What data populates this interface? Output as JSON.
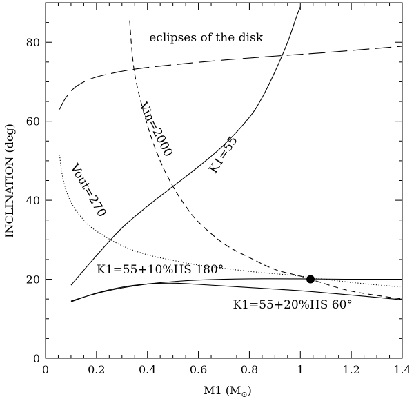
{
  "chart_data": {
    "type": "line",
    "title": "",
    "xlabel": "M1 (M",
    "xlabel_sub": "⊙",
    "xlabel_end": ")",
    "ylabel": "INCLINATION (deg)",
    "xlim": [
      0,
      1.4
    ],
    "ylim": [
      0,
      90
    ],
    "grid": false,
    "x_ticks": [
      {
        "value": 0,
        "label": "0"
      },
      {
        "value": 0.2,
        "label": "0.2"
      },
      {
        "value": 0.4,
        "label": "0.4"
      },
      {
        "value": 0.6,
        "label": "0.6"
      },
      {
        "value": 0.8,
        "label": "0.8"
      },
      {
        "value": 1.0,
        "label": "1"
      },
      {
        "value": 1.2,
        "label": "1.2"
      },
      {
        "value": 1.4,
        "label": "1.4"
      }
    ],
    "y_ticks": [
      {
        "value": 0,
        "label": "0"
      },
      {
        "value": 20,
        "label": "20"
      },
      {
        "value": 40,
        "label": "40"
      },
      {
        "value": 60,
        "label": "60"
      },
      {
        "value": 80,
        "label": "80"
      }
    ],
    "series": [
      {
        "id": "eclipses",
        "style": "longdash",
        "color": "#000000",
        "points": [
          [
            0.055,
            63
          ],
          [
            0.08,
            66
          ],
          [
            0.12,
            68.8
          ],
          [
            0.18,
            70.8
          ],
          [
            0.25,
            72
          ],
          [
            0.35,
            73.2
          ],
          [
            0.5,
            74.3
          ],
          [
            0.7,
            75.5
          ],
          [
            0.9,
            76.5
          ],
          [
            1.1,
            77.4
          ],
          [
            1.4,
            79
          ]
        ]
      },
      {
        "id": "k1-55",
        "style": "solid",
        "color": "#000000",
        "points": [
          [
            0.1,
            18.5
          ],
          [
            0.2,
            26
          ],
          [
            0.3,
            33
          ],
          [
            0.4,
            38.5
          ],
          [
            0.5,
            43.5
          ],
          [
            0.6,
            48.5
          ],
          [
            0.7,
            54
          ],
          [
            0.8,
            61
          ],
          [
            0.85,
            66
          ],
          [
            0.9,
            72.5
          ],
          [
            0.95,
            80
          ],
          [
            0.985,
            86.5
          ],
          [
            1.0,
            89
          ]
        ]
      },
      {
        "id": "vin-2000",
        "style": "dash",
        "color": "#000000",
        "points": [
          [
            0.33,
            85.5
          ],
          [
            0.35,
            72
          ],
          [
            0.4,
            59
          ],
          [
            0.45,
            50
          ],
          [
            0.5,
            43.5
          ],
          [
            0.55,
            38.5
          ],
          [
            0.6,
            34.5
          ],
          [
            0.7,
            29
          ],
          [
            0.8,
            25.5
          ],
          [
            0.9,
            22.5
          ],
          [
            1.0,
            20.8
          ],
          [
            1.04,
            20
          ],
          [
            1.2,
            17
          ],
          [
            1.4,
            15
          ]
        ]
      },
      {
        "id": "vout-270",
        "style": "dot",
        "color": "#000000",
        "points": [
          [
            0.055,
            51.5
          ],
          [
            0.07,
            45
          ],
          [
            0.1,
            39.5
          ],
          [
            0.15,
            35
          ],
          [
            0.2,
            32.2
          ],
          [
            0.3,
            28.5
          ],
          [
            0.4,
            26.2
          ],
          [
            0.5,
            24.8
          ],
          [
            0.6,
            23.6
          ],
          [
            0.8,
            22
          ],
          [
            1.0,
            20.8
          ],
          [
            1.2,
            19.2
          ],
          [
            1.4,
            18
          ]
        ]
      },
      {
        "id": "k1-10hs-180",
        "style": "solid",
        "color": "#000000",
        "points": [
          [
            0.1,
            14.5
          ],
          [
            0.2,
            16.4
          ],
          [
            0.3,
            17.8
          ],
          [
            0.4,
            18.8
          ],
          [
            0.5,
            19.4
          ],
          [
            0.6,
            19.8
          ],
          [
            0.8,
            20.1
          ],
          [
            1.0,
            20.1
          ],
          [
            1.2,
            20
          ],
          [
            1.4,
            20
          ]
        ]
      },
      {
        "id": "k1-20hs-60",
        "style": "solid",
        "color": "#000000",
        "points": [
          [
            0.1,
            14.3
          ],
          [
            0.2,
            16.5
          ],
          [
            0.3,
            18
          ],
          [
            0.4,
            18.8
          ],
          [
            0.5,
            19
          ],
          [
            0.6,
            18.7
          ],
          [
            0.8,
            17.9
          ],
          [
            1.0,
            17.1
          ],
          [
            1.2,
            16
          ],
          [
            1.4,
            14.8
          ]
        ]
      }
    ],
    "marker": {
      "x": 1.04,
      "y": 20
    },
    "annotations": [
      {
        "id": "eclipses-label",
        "text": "eclipses of the disk",
        "x": 0.63,
        "y": 80.2,
        "rotate": 0
      },
      {
        "id": "vin-label",
        "text": "Vin=2000",
        "x": 0.42,
        "y": 57.5,
        "rotate": 63
      },
      {
        "id": "k1-label",
        "text": "K1=55",
        "x": 0.71,
        "y": 51,
        "rotate": -57
      },
      {
        "id": "vout-label",
        "text": "Vout=270",
        "x": 0.155,
        "y": 42,
        "rotate": 60
      },
      {
        "id": "k1-10hs-label",
        "text": "K1=55+10%HS 180°",
        "x": 0.45,
        "y": 21.5,
        "rotate": 0
      },
      {
        "id": "k1-20hs-label",
        "text": "K1=55+20%HS 60°",
        "x": 0.97,
        "y": 12.6,
        "rotate": 0
      }
    ]
  }
}
